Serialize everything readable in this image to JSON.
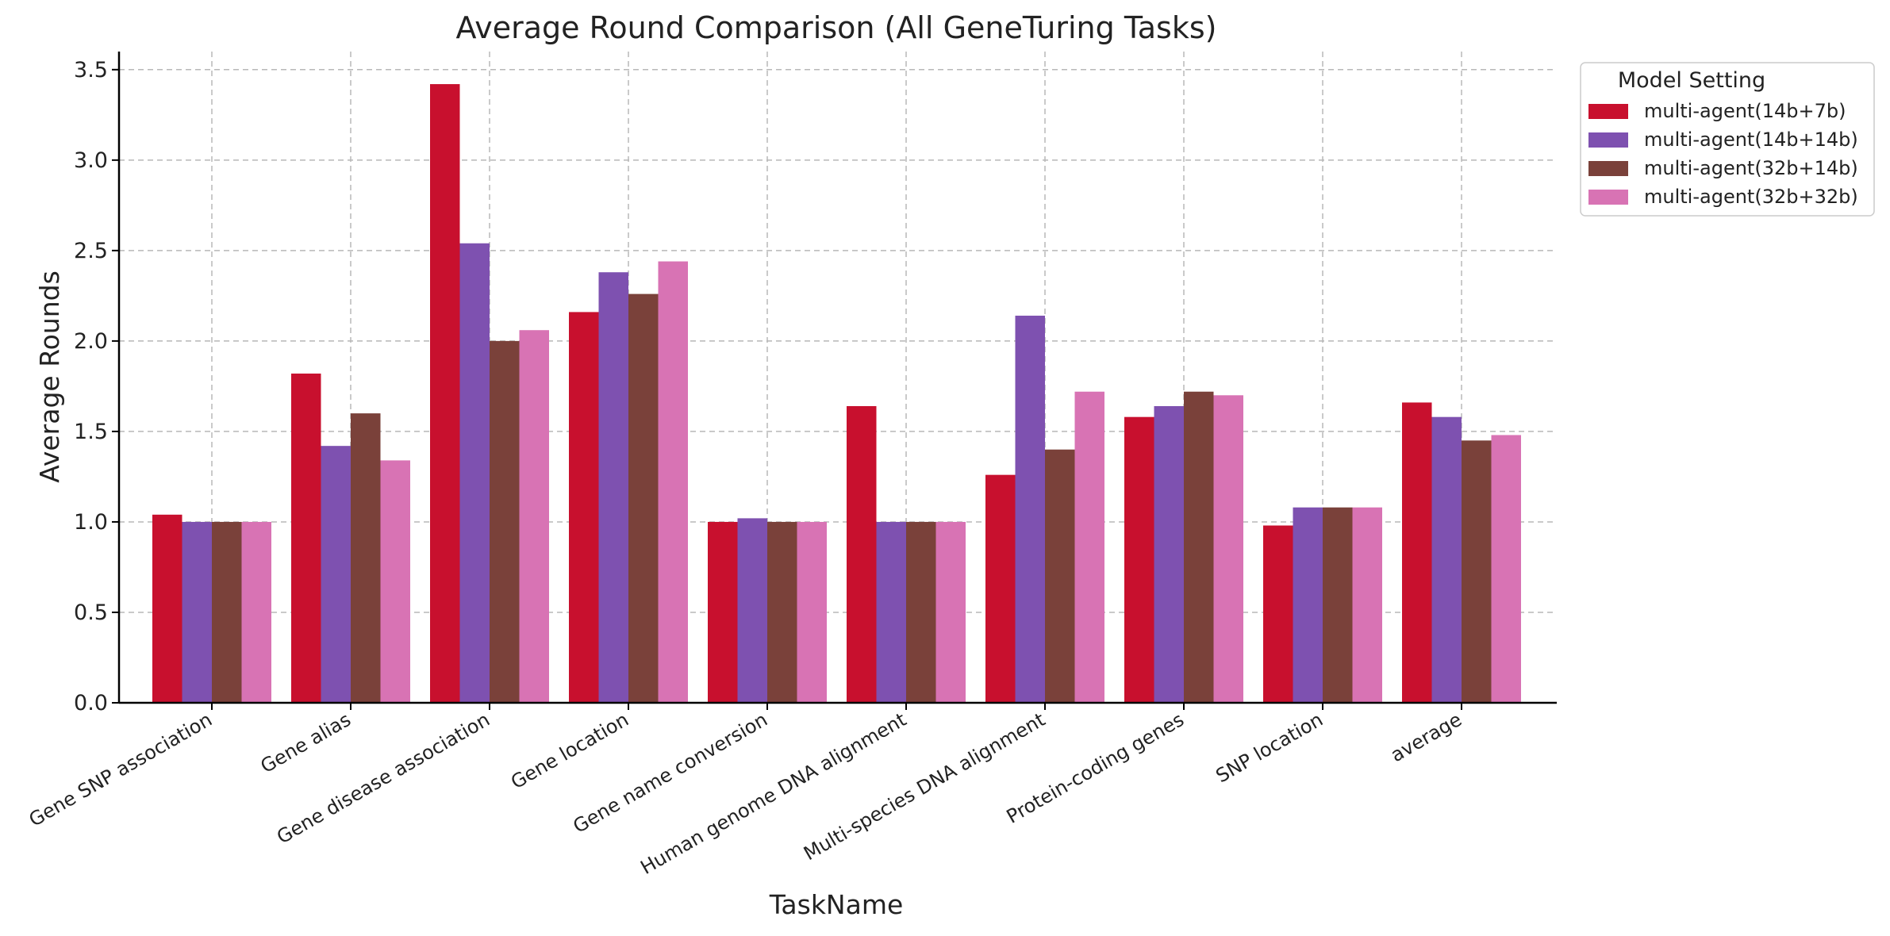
{
  "chart_data": {
    "type": "bar",
    "title": "Average Round Comparison (All GeneTuring Tasks)",
    "xlabel": "TaskName",
    "ylabel": "Average Rounds",
    "ylim": [
      0,
      3.6
    ],
    "yticks": [
      "0.0",
      "0.5",
      "1.0",
      "1.5",
      "2.0",
      "2.5",
      "3.0",
      "3.5"
    ],
    "grid": true,
    "legend_title": "Model Setting",
    "legend_position": "outside top-right",
    "categories": [
      "Gene SNP association",
      "Gene alias",
      "Gene disease association",
      "Gene location",
      "Gene name conversion",
      "Human genome DNA alignment",
      "Multi-species DNA alignment",
      "Protein-coding genes",
      "SNP location",
      "average"
    ],
    "series": [
      {
        "name": "multi-agent(14b+7b)",
        "color": "#c8102e",
        "values": [
          1.04,
          1.82,
          3.42,
          2.16,
          1.0,
          1.64,
          1.26,
          1.58,
          0.98,
          1.66
        ]
      },
      {
        "name": "multi-agent(14b+14b)",
        "color": "#7e51b0",
        "values": [
          1.0,
          1.42,
          2.54,
          2.38,
          1.02,
          1.0,
          2.14,
          1.64,
          1.08,
          1.58
        ]
      },
      {
        "name": "multi-agent(32b+14b)",
        "color": "#7a413a",
        "values": [
          1.0,
          1.6,
          2.0,
          2.26,
          1.0,
          1.0,
          1.4,
          1.72,
          1.08,
          1.45
        ]
      },
      {
        "name": "multi-agent(32b+32b)",
        "color": "#d873b4",
        "values": [
          1.0,
          1.34,
          2.06,
          2.44,
          1.0,
          1.0,
          1.72,
          1.7,
          1.08,
          1.48
        ]
      }
    ]
  }
}
